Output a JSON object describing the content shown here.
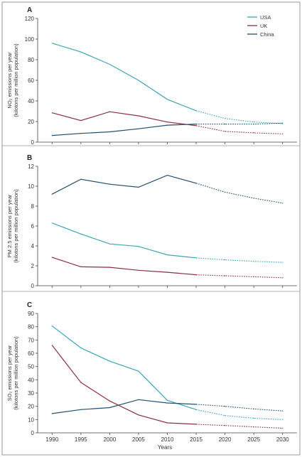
{
  "legend": [
    {
      "name": "USA",
      "color": "#3aa6b9"
    },
    {
      "name": "UK",
      "color": "#8c2f3f"
    },
    {
      "name": "China",
      "color": "#244f6e"
    }
  ],
  "x_axis": {
    "label": "Years",
    "ticks": [
      "1990",
      "1995",
      "2000",
      "2005",
      "2010",
      "2015",
      "2020",
      "2025",
      "2030"
    ]
  },
  "chart_data": [
    {
      "panel": "A",
      "type": "line",
      "ylabel_line1": "NO₂ emissions per year",
      "ylabel_line2": "(kilotons per million population)",
      "ylim": [
        0,
        120
      ],
      "yticks": [
        "0",
        "20",
        "40",
        "60",
        "80",
        "100",
        "120"
      ],
      "x": [
        1990,
        1995,
        2000,
        2005,
        2010,
        2015,
        2020,
        2025,
        2030
      ],
      "projection_start": 2015,
      "series": [
        {
          "name": "USA",
          "color": "#3aa6b9",
          "values": [
            96,
            87.5,
            75.5,
            60,
            41.5,
            30.5,
            23,
            19.5,
            18
          ]
        },
        {
          "name": "UK",
          "color": "#8c2f3f",
          "values": [
            28.5,
            21,
            29.5,
            25.5,
            19.5,
            16,
            10.5,
            9,
            8
          ]
        },
        {
          "name": "China",
          "color": "#244f6e",
          "values": [
            6.5,
            8.5,
            10,
            13,
            16.5,
            17.5,
            17.5,
            17.5,
            18.5
          ]
        }
      ]
    },
    {
      "panel": "B",
      "type": "line",
      "ylabel_line1": "PM 2.5 emissions per year",
      "ylabel_line2": "(kilotons per million population)",
      "ylim": [
        0,
        12
      ],
      "yticks": [
        "0",
        "2",
        "4",
        "6",
        "8",
        "10",
        "12"
      ],
      "x": [
        1990,
        1995,
        2000,
        2005,
        2010,
        2015,
        2020,
        2025,
        2030
      ],
      "projection_start": 2015,
      "series": [
        {
          "name": "China",
          "color": "#244f6e",
          "values": [
            9.2,
            10.7,
            10.2,
            9.9,
            11.1,
            10.3,
            9.4,
            8.8,
            8.3
          ]
        },
        {
          "name": "USA",
          "color": "#3aa6b9",
          "values": [
            6.3,
            5.2,
            4.2,
            3.95,
            3.1,
            2.8,
            2.6,
            2.45,
            2.35
          ]
        },
        {
          "name": "UK",
          "color": "#8c2f3f",
          "values": [
            2.85,
            1.9,
            1.85,
            1.55,
            1.35,
            1.1,
            1.0,
            0.9,
            0.8
          ]
        }
      ]
    },
    {
      "panel": "C",
      "type": "line",
      "ylabel_line1": "SO₂ emissions per year",
      "ylabel_line2": "(kilotons per million population)",
      "ylim": [
        0,
        90
      ],
      "yticks": [
        "0",
        "10",
        "20",
        "30",
        "40",
        "50",
        "60",
        "70",
        "80",
        "90"
      ],
      "x": [
        1990,
        1995,
        2000,
        2005,
        2010,
        2015,
        2020,
        2025,
        2030
      ],
      "projection_start": 2015,
      "series": [
        {
          "name": "USA",
          "color": "#3aa6b9",
          "values": [
            80.5,
            64,
            54,
            46.5,
            24.5,
            17.5,
            13,
            11,
            10
          ]
        },
        {
          "name": "UK",
          "color": "#8c2f3f",
          "values": [
            66,
            38,
            24,
            13.5,
            7.5,
            6.5,
            5.5,
            4.5,
            3.5
          ]
        },
        {
          "name": "China",
          "color": "#244f6e",
          "values": [
            14.5,
            17.5,
            19,
            25,
            22.5,
            21.5,
            20,
            18,
            16.5
          ]
        }
      ]
    }
  ]
}
